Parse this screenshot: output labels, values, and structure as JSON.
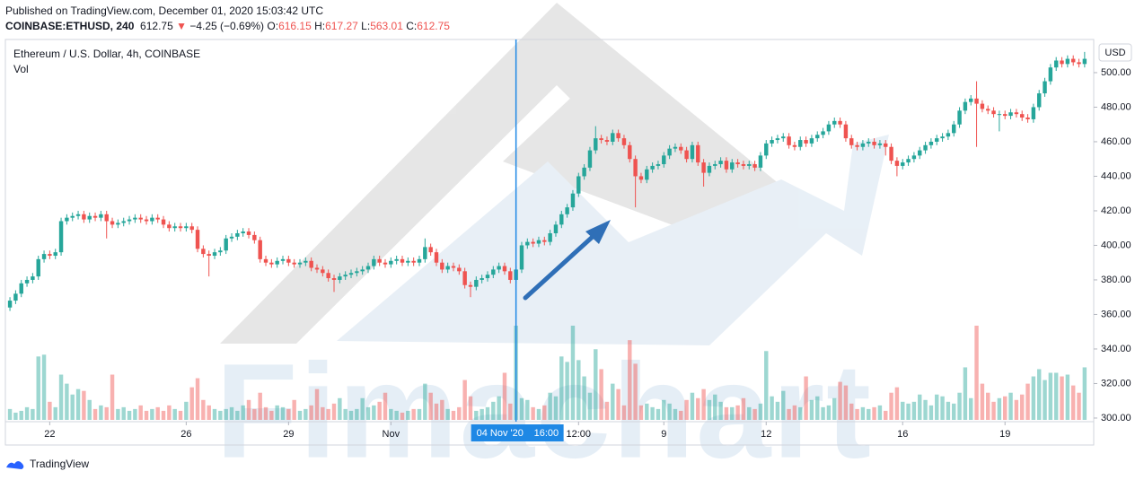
{
  "header": {
    "published": "Published on TradingView.com, December 01, 2020 15:03:42 UTC",
    "symbol": "COINBASE:ETHUSD, 240",
    "last": "612.75",
    "arrow": "▼",
    "change": "−4.25 (−0.69%)",
    "ohlc": [
      {
        "key": "O:",
        "value": "616.15"
      },
      {
        "key": "H:",
        "value": "617.27"
      },
      {
        "key": "L:",
        "value": "563.01"
      },
      {
        "key": "C:",
        "value": "612.75"
      }
    ]
  },
  "footer": {
    "brand": "TradingView"
  },
  "watermark": "Fimachart",
  "chart_data": {
    "type": "candlestick",
    "title": "Ethereum / U.S. Dollar, 4h, COINBASE",
    "volume_label": "Vol",
    "currency": "USD",
    "up_color": "#26a69a",
    "down_color": "#ef5350",
    "xlim": [
      -0.8,
      190.6
    ],
    "ylim": [
      297.9,
      519.2
    ],
    "xticks": [
      {
        "value": 7,
        "label": "22"
      },
      {
        "value": 31,
        "label": "26"
      },
      {
        "value": 49,
        "label": "29"
      },
      {
        "value": 67,
        "label": "Nov"
      },
      {
        "value": 100,
        "label": "12:00"
      },
      {
        "value": 115,
        "label": "9"
      },
      {
        "value": 133,
        "label": "12"
      },
      {
        "value": 157,
        "label": "16"
      },
      {
        "value": 175,
        "label": "19"
      }
    ],
    "yticks": [
      {
        "value": 300,
        "label": "300.00"
      },
      {
        "value": 320,
        "label": "320.00"
      },
      {
        "value": 340,
        "label": "340.00"
      },
      {
        "value": 360,
        "label": "360.00"
      },
      {
        "value": 380,
        "label": "380.00"
      },
      {
        "value": 400,
        "label": "400.00"
      },
      {
        "value": 420,
        "label": "420.00"
      },
      {
        "value": 440,
        "label": "440.00"
      },
      {
        "value": 460,
        "label": "460.00"
      },
      {
        "value": 480,
        "label": "480.00"
      },
      {
        "value": 500,
        "label": "500.00"
      }
    ],
    "crosshair": {
      "x": 89,
      "date": "04 Nov '20",
      "time": "16:00"
    },
    "open": [
      364,
      368,
      372,
      378,
      380,
      382,
      392,
      395,
      394,
      396,
      414,
      416,
      417,
      418,
      415,
      417,
      416,
      418,
      414,
      412,
      413,
      414,
      415,
      416,
      415,
      414,
      416,
      415,
      412,
      410,
      411,
      410,
      411,
      409,
      398,
      395,
      394,
      396,
      397,
      404,
      405,
      407,
      408,
      406,
      403,
      392,
      390,
      389,
      391,
      392,
      390,
      389,
      390,
      391,
      387,
      386,
      384,
      381,
      380,
      382,
      383,
      384,
      385,
      386,
      388,
      392,
      390,
      389,
      391,
      392,
      390,
      391,
      390,
      392,
      399,
      396,
      390,
      386,
      388,
      387,
      385,
      377,
      376,
      380,
      381,
      383,
      386,
      388,
      385,
      380,
      386,
      400,
      402,
      401,
      403,
      402,
      407,
      412,
      418,
      422,
      430,
      440,
      445,
      455,
      462,
      461,
      460,
      465,
      462,
      458,
      450,
      440,
      438,
      444,
      446,
      447,
      452,
      456,
      457,
      455,
      450,
      458,
      448,
      442,
      446,
      447,
      449,
      444,
      448,
      447,
      446,
      447,
      445,
      452,
      459,
      461,
      462,
      463,
      458,
      457,
      461,
      459,
      462,
      464,
      466,
      470,
      472,
      470,
      462,
      458,
      457,
      459,
      460,
      458,
      459,
      457,
      449,
      446,
      448,
      450,
      452,
      455,
      458,
      460,
      462,
      463,
      465,
      470,
      478,
      483,
      485,
      482,
      479,
      478,
      476,
      476,
      475,
      477,
      476,
      474,
      473,
      480,
      488,
      495,
      503,
      507,
      505,
      508,
      506,
      505
    ],
    "high": [
      370,
      374,
      380,
      382,
      384,
      394,
      397,
      397,
      398,
      416,
      418,
      419,
      420,
      420,
      419,
      419,
      420,
      420,
      416,
      415,
      416,
      417,
      418,
      418,
      417,
      418,
      418,
      417,
      414,
      413,
      413,
      413,
      413,
      411,
      400,
      397,
      398,
      399,
      406,
      407,
      409,
      410,
      410,
      408,
      405,
      394,
      392,
      393,
      394,
      394,
      392,
      392,
      393,
      393,
      389,
      388,
      386,
      383,
      384,
      385,
      386,
      387,
      388,
      390,
      394,
      394,
      392,
      393,
      394,
      394,
      393,
      393,
      394,
      404,
      401,
      398,
      392,
      390,
      390,
      389,
      387,
      379,
      382,
      383,
      385,
      388,
      390,
      390,
      387,
      388,
      402,
      404,
      404,
      405,
      405,
      409,
      414,
      420,
      424,
      432,
      442,
      447,
      457,
      469,
      464,
      463,
      467,
      467,
      464,
      460,
      452,
      442,
      446,
      448,
      449,
      454,
      458,
      459,
      459,
      457,
      460,
      460,
      450,
      448,
      449,
      451,
      451,
      450,
      450,
      449,
      449,
      449,
      454,
      461,
      463,
      464,
      465,
      465,
      460,
      463,
      463,
      464,
      466,
      468,
      472,
      474,
      474,
      472,
      464,
      460,
      461,
      462,
      462,
      461,
      461,
      459,
      451,
      450,
      452,
      454,
      457,
      460,
      462,
      464,
      465,
      467,
      472,
      480,
      485,
      487,
      495,
      484,
      481,
      480,
      478,
      478,
      479,
      479,
      478,
      476,
      482,
      490,
      497,
      505,
      509,
      509,
      510,
      510,
      508,
      512
    ],
    "low": [
      362,
      366,
      370,
      376,
      378,
      380,
      390,
      392,
      392,
      394,
      412,
      414,
      415,
      413,
      413,
      414,
      414,
      404,
      410,
      410,
      411,
      412,
      413,
      413,
      412,
      412,
      413,
      410,
      408,
      408,
      408,
      408,
      407,
      396,
      393,
      382,
      392,
      394,
      395,
      402,
      403,
      405,
      404,
      401,
      390,
      388,
      387,
      387,
      389,
      388,
      387,
      387,
      388,
      385,
      384,
      382,
      379,
      373,
      378,
      380,
      381,
      382,
      383,
      384,
      386,
      388,
      387,
      387,
      389,
      388,
      388,
      388,
      388,
      390,
      394,
      388,
      384,
      384,
      385,
      383,
      375,
      370,
      374,
      378,
      379,
      381,
      384,
      383,
      378,
      378,
      384,
      398,
      399,
      399,
      400,
      400,
      405,
      410,
      416,
      420,
      428,
      438,
      443,
      453,
      459,
      458,
      458,
      460,
      456,
      448,
      422,
      436,
      436,
      442,
      444,
      445,
      450,
      454,
      453,
      448,
      448,
      446,
      434,
      440,
      444,
      445,
      442,
      442,
      445,
      444,
      444,
      443,
      443,
      450,
      457,
      459,
      460,
      456,
      455,
      455,
      457,
      457,
      460,
      462,
      464,
      468,
      468,
      460,
      456,
      455,
      455,
      457,
      456,
      456,
      452,
      447,
      440,
      444,
      446,
      448,
      450,
      453,
      456,
      458,
      460,
      461,
      463,
      468,
      476,
      481,
      457,
      477,
      476,
      474,
      466,
      473,
      473,
      474,
      472,
      471,
      471,
      478,
      486,
      493,
      501,
      503,
      503,
      504,
      503,
      503
    ],
    "close": [
      368,
      372,
      378,
      380,
      382,
      392,
      395,
      394,
      396,
      414,
      416,
      417,
      418,
      415,
      417,
      416,
      418,
      414,
      412,
      413,
      414,
      415,
      416,
      415,
      414,
      416,
      415,
      412,
      410,
      411,
      410,
      411,
      409,
      398,
      395,
      394,
      396,
      397,
      404,
      405,
      407,
      408,
      406,
      403,
      392,
      390,
      389,
      391,
      392,
      390,
      389,
      390,
      391,
      387,
      386,
      384,
      381,
      380,
      382,
      383,
      384,
      385,
      386,
      388,
      392,
      390,
      389,
      391,
      392,
      390,
      391,
      390,
      392,
      399,
      396,
      390,
      386,
      388,
      387,
      385,
      377,
      376,
      380,
      381,
      383,
      386,
      388,
      385,
      380,
      386,
      400,
      402,
      401,
      403,
      402,
      407,
      412,
      418,
      422,
      430,
      440,
      445,
      455,
      462,
      461,
      460,
      465,
      462,
      458,
      450,
      440,
      438,
      444,
      446,
      447,
      452,
      456,
      457,
      455,
      450,
      458,
      448,
      442,
      446,
      447,
      449,
      444,
      448,
      447,
      446,
      447,
      445,
      452,
      459,
      461,
      462,
      463,
      458,
      457,
      461,
      459,
      462,
      464,
      466,
      470,
      472,
      470,
      462,
      458,
      457,
      459,
      460,
      458,
      459,
      457,
      449,
      446,
      448,
      450,
      452,
      455,
      458,
      460,
      462,
      463,
      465,
      470,
      478,
      483,
      485,
      482,
      479,
      478,
      476,
      476,
      475,
      477,
      476,
      474,
      473,
      480,
      488,
      495,
      503,
      507,
      505,
      508,
      506,
      505,
      508
    ],
    "volume": [
      12,
      8,
      10,
      14,
      12,
      70,
      72,
      20,
      14,
      50,
      40,
      28,
      34,
      32,
      22,
      12,
      16,
      14,
      50,
      12,
      14,
      10,
      12,
      16,
      10,
      12,
      14,
      10,
      16,
      12,
      10,
      20,
      36,
      46,
      22,
      16,
      12,
      10,
      12,
      14,
      10,
      16,
      22,
      12,
      30,
      14,
      10,
      16,
      14,
      12,
      22,
      10,
      12,
      16,
      34,
      14,
      12,
      18,
      24,
      12,
      10,
      12,
      24,
      14,
      16,
      20,
      30,
      12,
      10,
      8,
      10,
      12,
      12,
      40,
      30,
      18,
      22,
      12,
      10,
      14,
      44,
      26,
      10,
      12,
      14,
      20,
      26,
      52,
      18,
      104,
      24,
      22,
      14,
      12,
      16,
      30,
      26,
      70,
      64,
      104,
      66,
      48,
      30,
      78,
      56,
      20,
      40,
      34,
      16,
      88,
      62,
      16,
      18,
      14,
      12,
      22,
      18,
      12,
      10,
      22,
      30,
      24,
      34,
      22,
      28,
      20,
      14,
      14,
      16,
      24,
      14,
      12,
      18,
      76,
      26,
      20,
      32,
      12,
      16,
      14,
      48,
      22,
      26,
      14,
      16,
      24,
      42,
      38,
      18,
      12,
      14,
      12,
      14,
      16,
      10,
      30,
      36,
      20,
      18,
      20,
      28,
      22,
      16,
      28,
      26,
      20,
      18,
      30,
      58,
      24,
      104,
      40,
      30,
      20,
      24,
      26,
      30,
      22,
      28,
      40,
      48,
      56,
      44,
      52,
      52,
      48,
      50,
      38,
      30,
      58
    ]
  }
}
